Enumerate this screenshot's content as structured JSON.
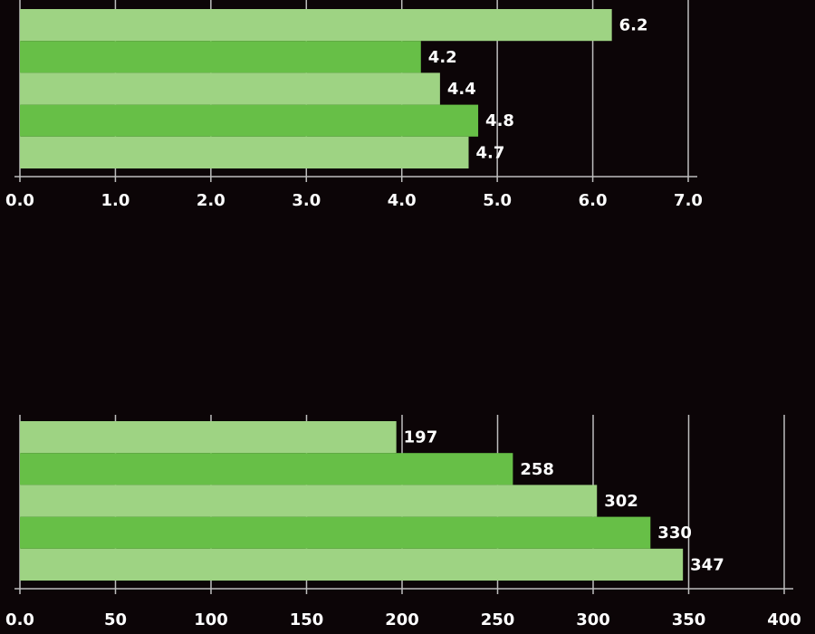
{
  "chart_data": [
    {
      "type": "bar",
      "orientation": "horizontal",
      "values": [
        6.2,
        4.2,
        4.4,
        4.8,
        4.7
      ],
      "colors": [
        "#9ed383",
        "#67bf47",
        "#9ed383",
        "#67bf47",
        "#9ed383"
      ],
      "xlim": [
        0,
        7
      ],
      "xticks": [
        {
          "value": 0,
          "label": "0.0"
        },
        {
          "value": 1,
          "label": "1.0"
        },
        {
          "value": 2,
          "label": "2.0"
        },
        {
          "value": 3,
          "label": "3.0"
        },
        {
          "value": 4,
          "label": "4.0"
        },
        {
          "value": 5,
          "label": "5.0"
        },
        {
          "value": 6,
          "label": "6.0"
        },
        {
          "value": 7,
          "label": "7.0"
        }
      ],
      "grid": true
    },
    {
      "type": "bar",
      "orientation": "horizontal",
      "values": [
        197,
        258,
        302,
        330,
        347
      ],
      "colors": [
        "#9ed383",
        "#67bf47",
        "#9ed383",
        "#67bf47",
        "#9ed383"
      ],
      "xlim": [
        0,
        400
      ],
      "xticks": [
        {
          "value": 0,
          "label": "0.0"
        },
        50,
        100,
        150,
        200,
        250,
        300,
        350,
        400
      ],
      "grid": true
    }
  ]
}
